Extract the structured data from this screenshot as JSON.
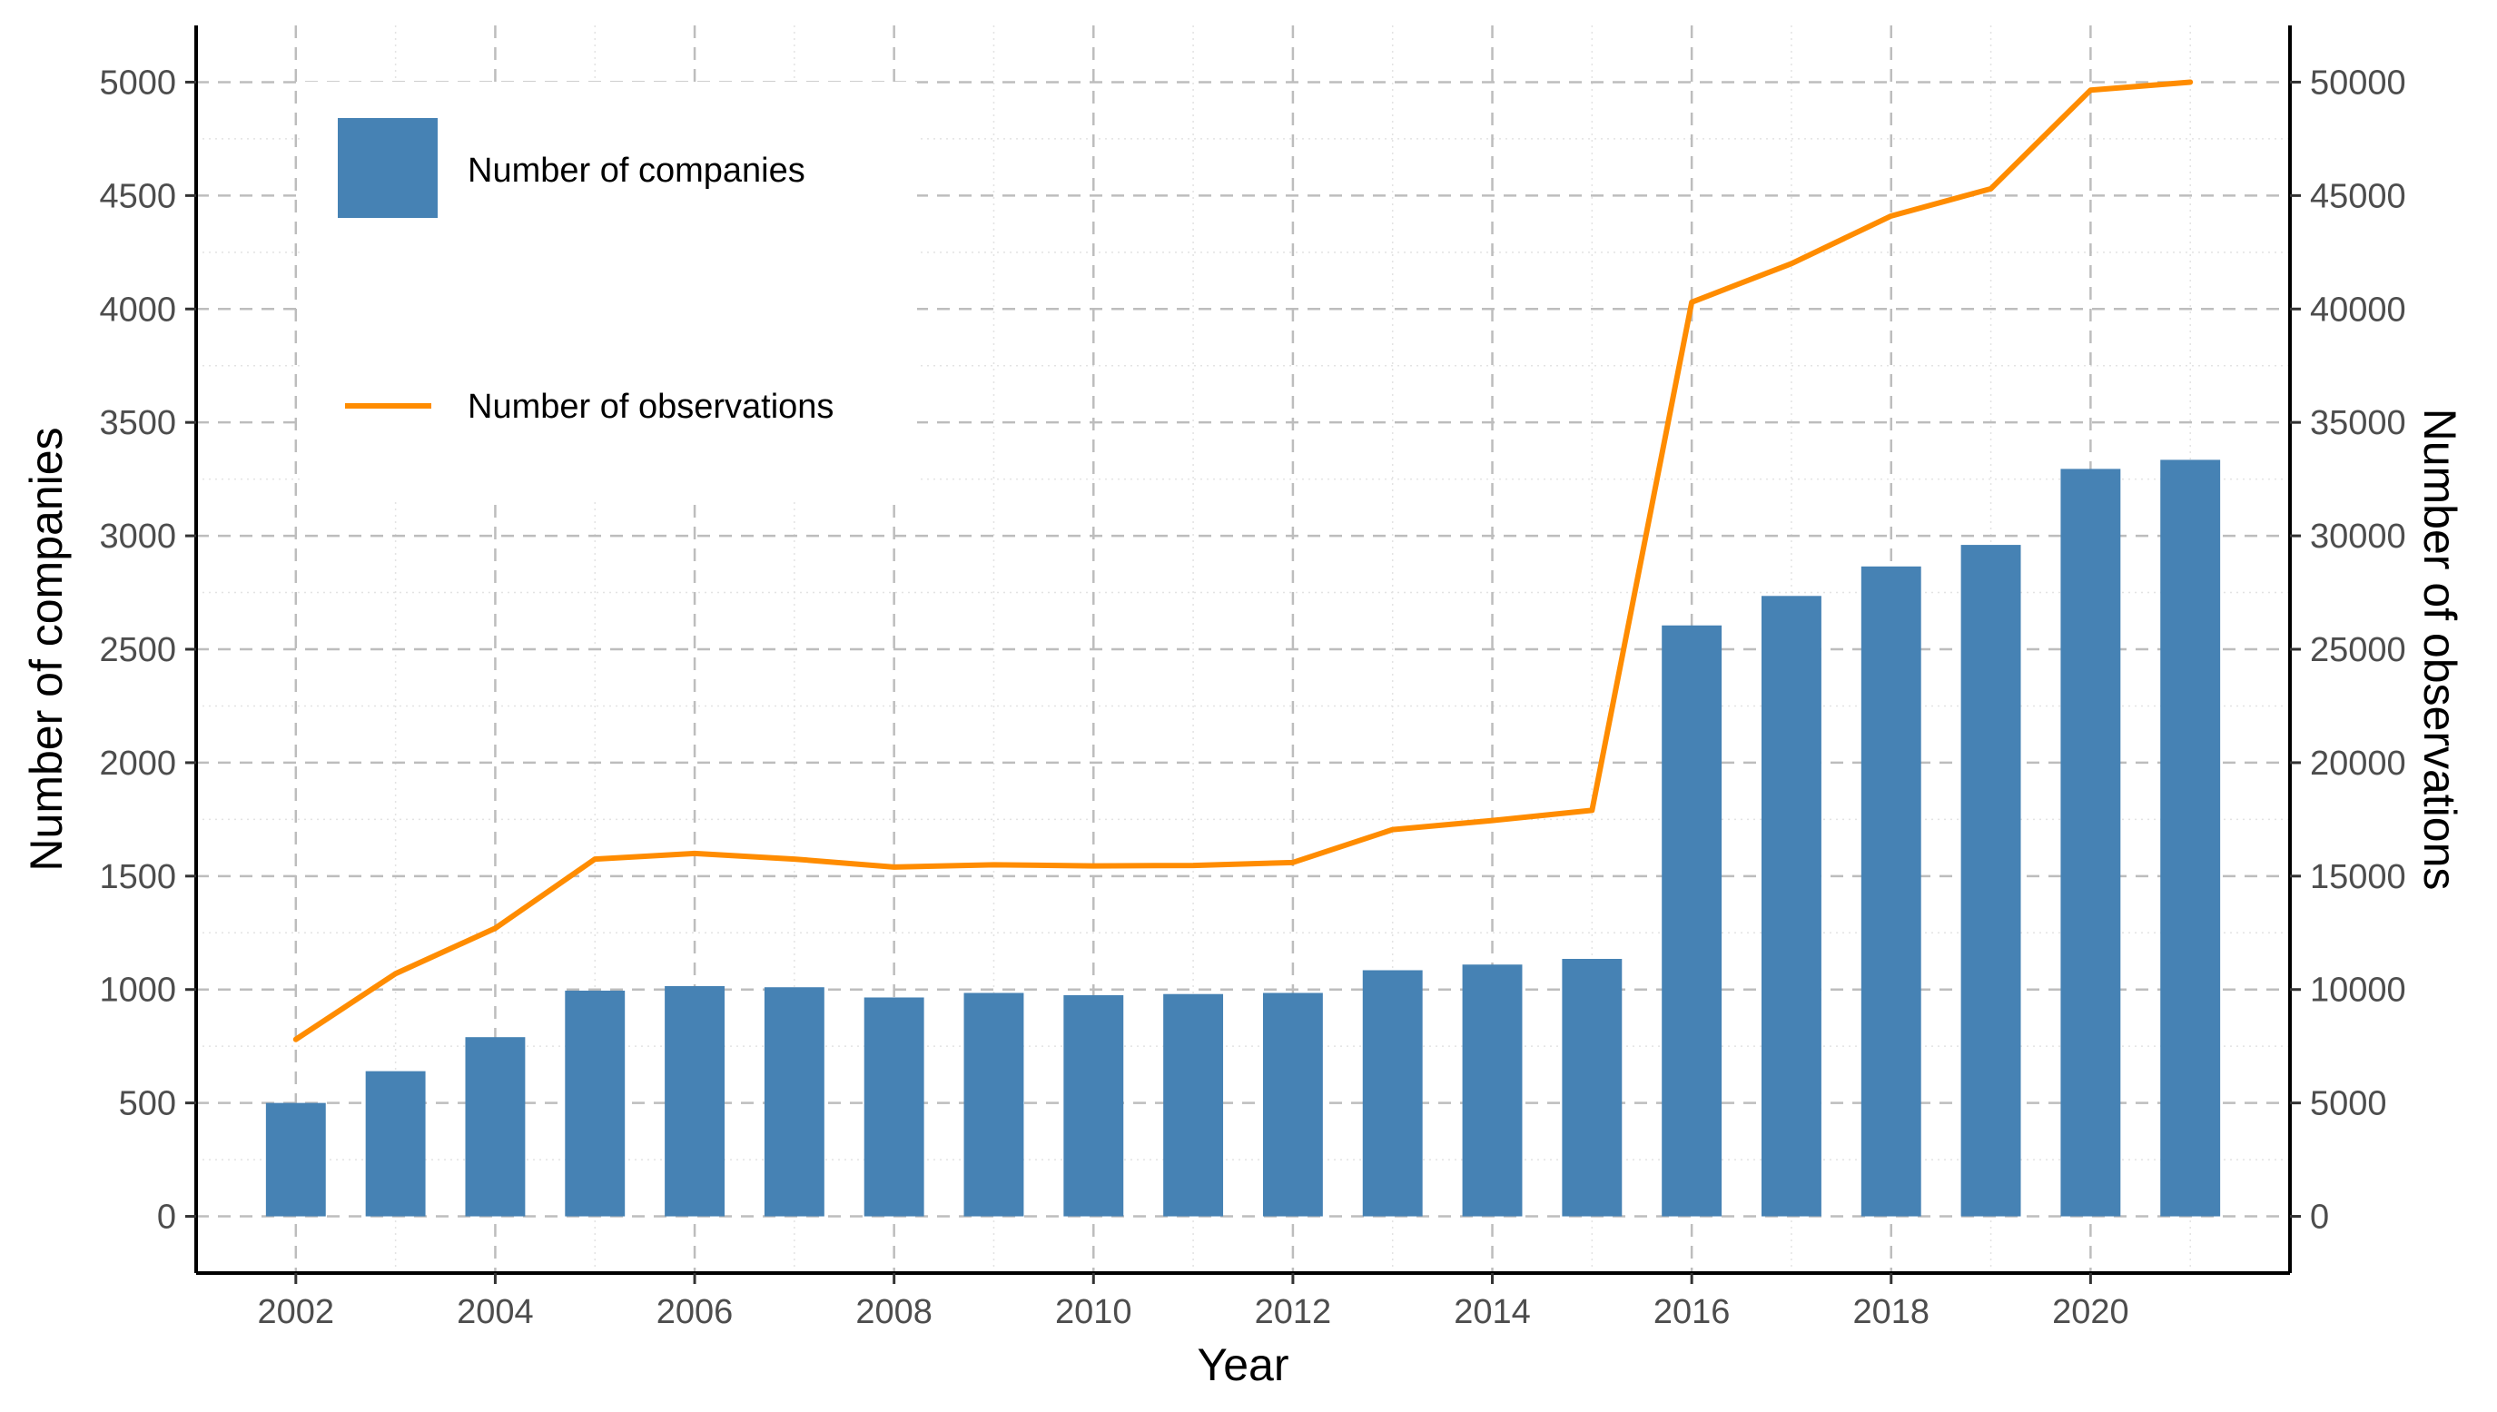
{
  "chart_data": {
    "type": "bar",
    "x": [
      2002,
      2003,
      2004,
      2005,
      2006,
      2007,
      2008,
      2009,
      2010,
      2011,
      2012,
      2013,
      2014,
      2015,
      2016,
      2017,
      2018,
      2019,
      2020,
      2021
    ],
    "series": [
      {
        "name": "Number of companies",
        "type": "bar",
        "axis": "left",
        "color": "#4682B4",
        "values": [
          500,
          640,
          790,
          995,
          1015,
          1010,
          965,
          985,
          975,
          980,
          985,
          1085,
          1110,
          1135,
          2605,
          2735,
          2865,
          2960,
          3295,
          3335
        ]
      },
      {
        "name": "Number of observations",
        "type": "line",
        "axis": "right",
        "color": "#FF8C00",
        "values": [
          7800,
          10700,
          12700,
          15750,
          16000,
          15750,
          15400,
          15500,
          15450,
          15470,
          15600,
          17050,
          17450,
          17900,
          40300,
          42000,
          44100,
          45300,
          49650,
          50000
        ]
      }
    ],
    "xlabel": "Year",
    "ylabel": "Number of companies",
    "y2label": "Number of observations",
    "xlim": [
      2001,
      2022
    ],
    "ylim": [
      -250,
      5250
    ],
    "y2lim": [
      -2500,
      52500
    ],
    "xticks": [
      2002,
      2004,
      2006,
      2008,
      2010,
      2012,
      2014,
      2016,
      2018,
      2020
    ],
    "yticks": [
      0,
      500,
      1000,
      1500,
      2000,
      2500,
      3000,
      3500,
      4000,
      4500,
      5000
    ],
    "y2ticks": [
      0,
      5000,
      10000,
      15000,
      20000,
      25000,
      30000,
      35000,
      40000,
      45000,
      50000
    ],
    "grid": true,
    "legend_position": "top-left"
  }
}
